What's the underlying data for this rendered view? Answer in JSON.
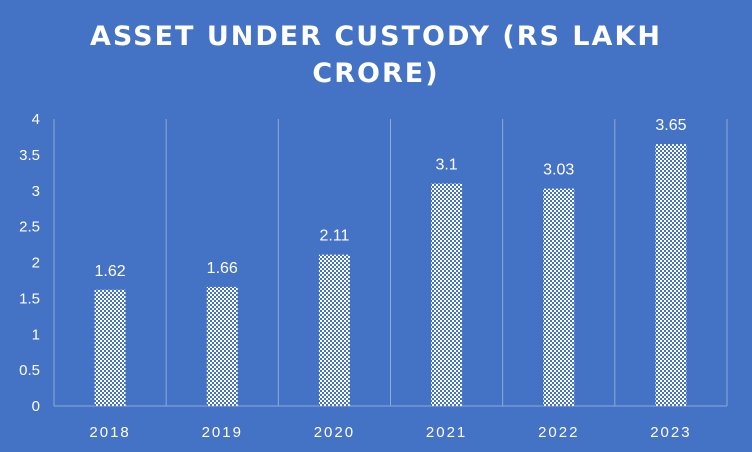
{
  "chart_data": {
    "type": "bar",
    "title_lines": [
      "ASSET UNDER CUSTODY (RS LAKH",
      "CRORE)"
    ],
    "categories": [
      "2018",
      "2019",
      "2020",
      "2021",
      "2022",
      "2023"
    ],
    "values": [
      1.62,
      1.66,
      2.11,
      3.1,
      3.03,
      3.65
    ],
    "data_labels": [
      "1.62",
      "1.66",
      "2.11",
      "3.1",
      "3.03",
      "3.65"
    ],
    "y_ticks": [
      "0",
      "0.5",
      "1",
      "1.5",
      "2",
      "2.5",
      "3",
      "3.5",
      "4"
    ],
    "ylim": [
      0,
      4
    ],
    "grid": "vertical category separators",
    "bar_fill": "white dotted pattern",
    "colors": {
      "background": "#4472C4",
      "bar_pattern": "#ffffff",
      "grid": "#8EA9DB",
      "text": "#ffffff"
    }
  }
}
